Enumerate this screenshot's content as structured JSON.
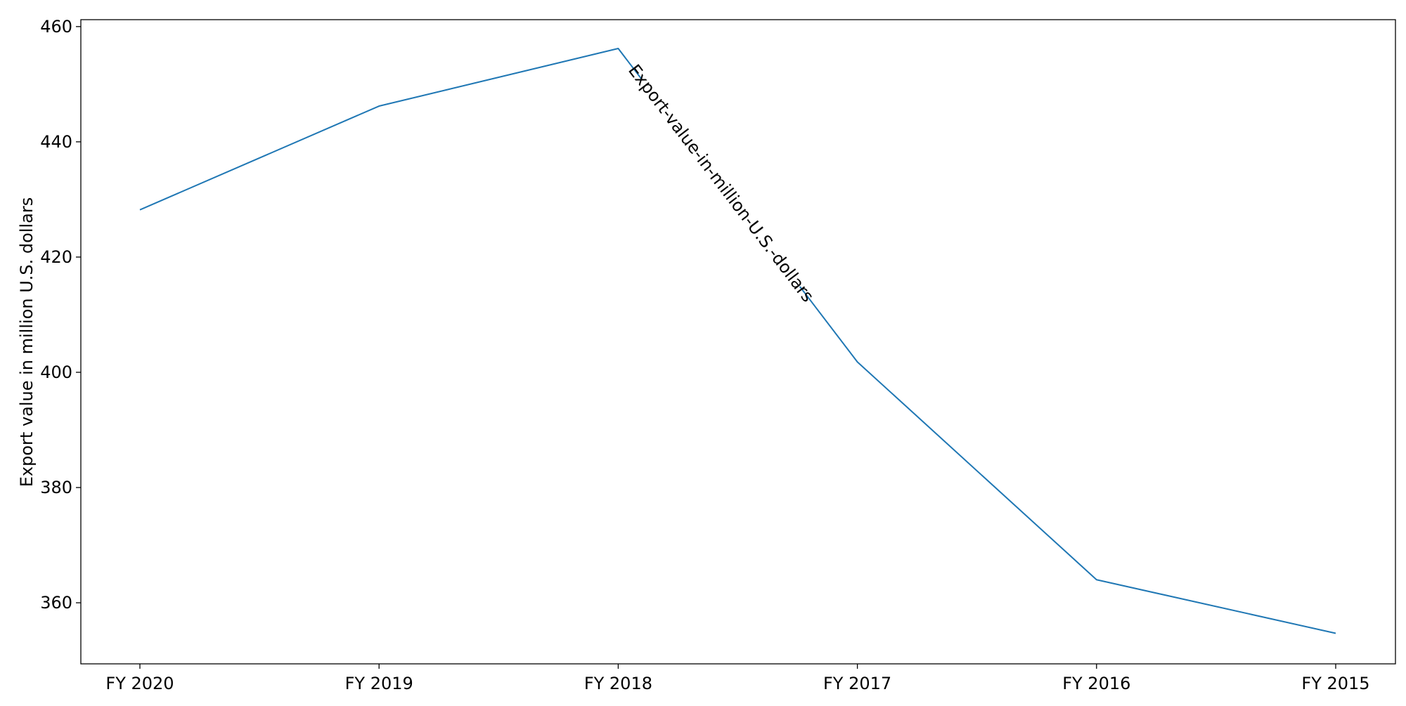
{
  "chart_data": {
    "type": "line",
    "title": "",
    "xlabel": "",
    "ylabel": "Export value in million U.S. dollars",
    "categories": [
      "FY 2020",
      "FY 2019",
      "FY 2018",
      "FY 2017",
      "FY 2016",
      "FY 2015"
    ],
    "series": [
      {
        "name": "Export-value-in-million-U.S.-dollars",
        "values": [
          428.2,
          446.2,
          456.2,
          401.8,
          364.0,
          354.7
        ],
        "color": "#1f77b4"
      }
    ],
    "ylim": [
      349.4,
      461.2
    ],
    "yticks": [
      360,
      380,
      400,
      420,
      440,
      460
    ],
    "grid": false,
    "legend": "none",
    "inline_series_label": {
      "text": "Export-value-in-million-U.S.-dollars",
      "along_segment": [
        2,
        3
      ]
    }
  }
}
